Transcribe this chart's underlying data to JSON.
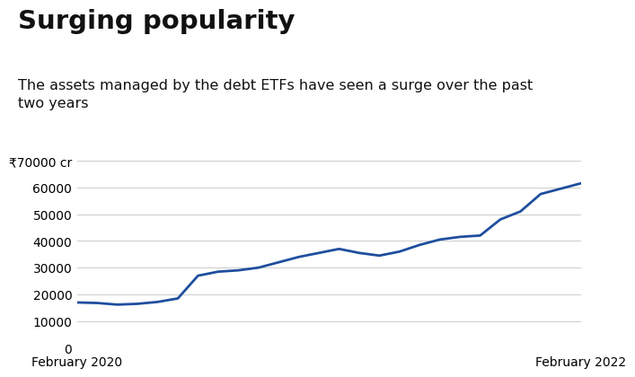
{
  "title": "Surging popularity",
  "subtitle": "The assets managed by the debt ETFs have seen a surge over the past\ntwo years",
  "line_color": "#1f4e9e",
  "line_width": 2.0,
  "background_color": "#ffffff",
  "ylim": [
    0,
    70000
  ],
  "yticks": [
    0,
    10000,
    20000,
    30000,
    40000,
    50000,
    60000,
    70000
  ],
  "ytick_labels": [
    "0",
    "10000",
    "20000",
    "30000",
    "40000",
    "50000",
    "60000",
    "₹70000 cr"
  ],
  "xlabel_ticks": [
    "February 2020",
    "February 2022"
  ],
  "x_values": [
    0,
    1,
    2,
    3,
    4,
    5,
    6,
    7,
    8,
    9,
    10,
    11,
    12,
    13,
    14,
    15,
    16,
    17,
    18,
    19,
    20,
    21,
    22,
    23,
    24,
    25
  ],
  "y_values": [
    17000,
    16800,
    16200,
    16500,
    17200,
    18500,
    27000,
    28500,
    29000,
    30000,
    32000,
    34000,
    35500,
    37000,
    35500,
    34500,
    36000,
    38500,
    40500,
    41500,
    42000,
    48000,
    51000,
    57500,
    59500,
    61500
  ],
  "grid_color": "#cccccc",
  "title_fontsize": 21,
  "subtitle_fontsize": 11.5,
  "tick_fontsize": 10
}
